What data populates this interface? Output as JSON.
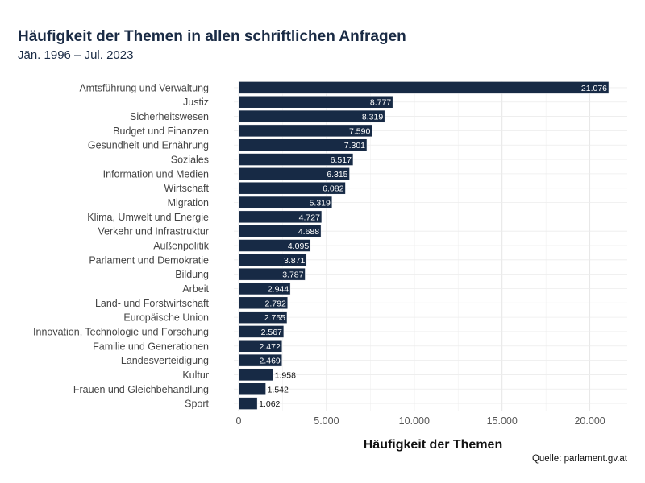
{
  "chart_data": {
    "type": "bar",
    "orientation": "horizontal",
    "title": "Häufigkeit der Themen in allen schriftlichen Anfragen",
    "subtitle": "Jän. 1996 – Jul. 2023",
    "xlabel": "Häufigkeit der Themen",
    "ylabel": "",
    "caption": "Quelle: parlament.gv.at",
    "xlim": [
      0,
      22130
    ],
    "xticks": [
      0,
      5000,
      10000,
      15000,
      20000
    ],
    "xtick_labels": [
      "0",
      "5.000",
      "10.000",
      "15.000",
      "20.000"
    ],
    "grid": true,
    "bar_color": "#172a45",
    "categories": [
      "Amtsführung und Verwaltung",
      "Justiz",
      "Sicherheitswesen",
      "Budget und Finanzen",
      "Gesundheit und Ernährung",
      "Soziales",
      "Information und Medien",
      "Wirtschaft",
      "Migration",
      "Klima, Umwelt und Energie",
      "Verkehr und Infrastruktur",
      "Außenpolitik",
      "Parlament und Demokratie",
      "Bildung",
      "Arbeit",
      "Land- und Forstwirtschaft",
      "Europäische Union",
      "Innovation, Technologie und Forschung",
      "Familie und Generationen",
      "Landesverteidigung",
      "Kultur",
      "Frauen und Gleichbehandlung",
      "Sport"
    ],
    "values": [
      21076,
      8777,
      8319,
      7590,
      7301,
      6517,
      6315,
      6082,
      5319,
      4727,
      4688,
      4095,
      3871,
      3787,
      2944,
      2792,
      2755,
      2567,
      2472,
      2469,
      1958,
      1542,
      1062
    ],
    "data_labels": [
      "21.076",
      "8.777",
      "8.319",
      "7.590",
      "7.301",
      "6.517",
      "6.315",
      "6.082",
      "5.319",
      "4.727",
      "4.688",
      "4.095",
      "3.871",
      "3.787",
      "2.944",
      "2.792",
      "2.755",
      "2.567",
      "2.472",
      "2.469",
      "1.958",
      "1.542",
      "1.062"
    ]
  }
}
